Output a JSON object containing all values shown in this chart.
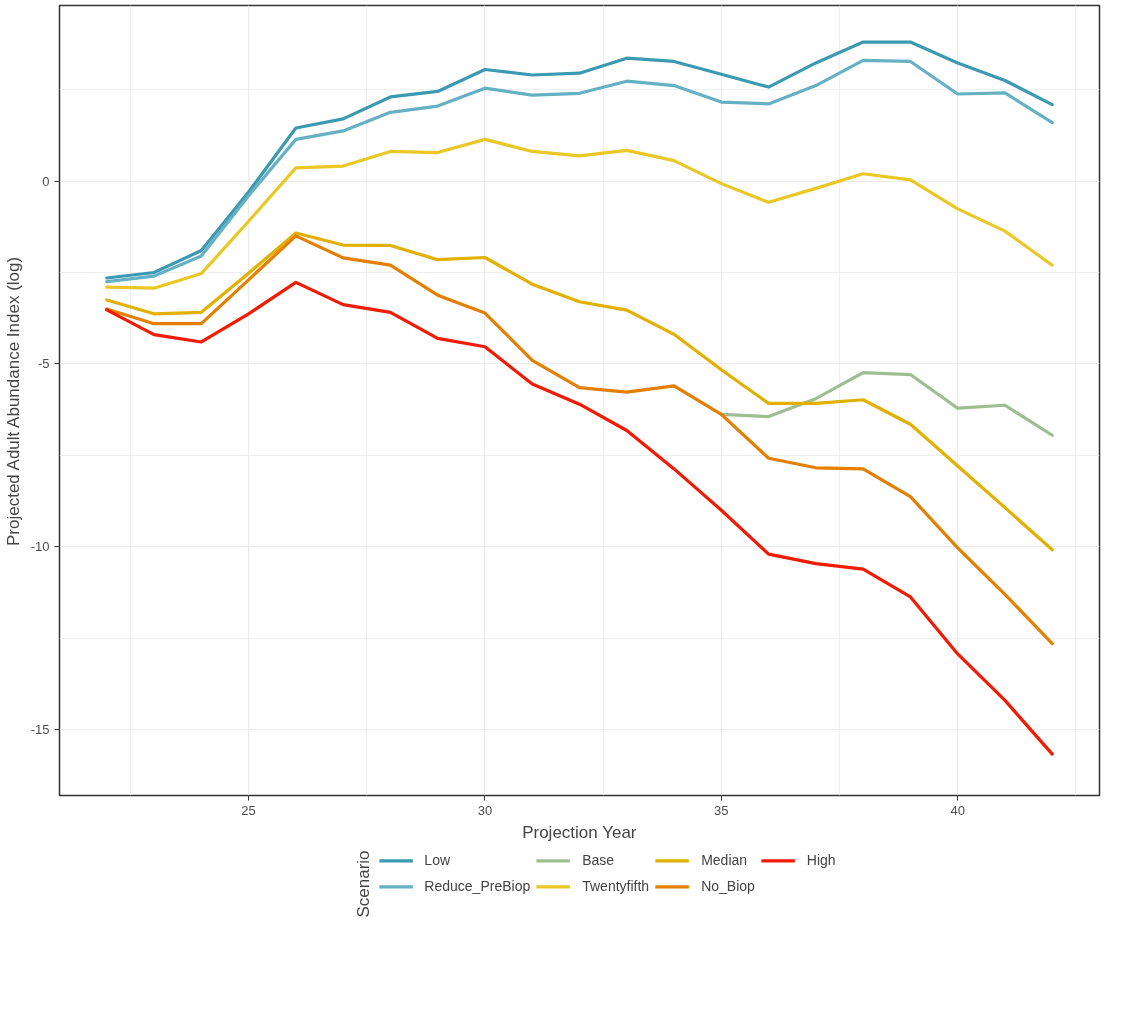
{
  "chart_data": {
    "type": "line",
    "xlabel": "Projection Year",
    "ylabel": "Projected Adult Abundance Index (log)",
    "legend_title": "Scenario",
    "x": [
      22,
      23,
      24,
      25,
      26,
      27,
      28,
      29,
      30,
      31,
      32,
      33,
      34,
      35,
      36,
      37,
      38,
      39,
      40,
      41,
      42
    ],
    "series": [
      {
        "name": "Low",
        "color": "#3b9ab2",
        "values": [
          -2.65,
          -2.5,
          -1.9,
          -0.3,
          1.45,
          1.7,
          2.3,
          2.45,
          3.05,
          2.9,
          2.95,
          3.36,
          3.27,
          2.92,
          2.57,
          3.23,
          3.8,
          3.8,
          3.23,
          2.75,
          2.09
        ]
      },
      {
        "name": "Reduce_PreBiop",
        "color": "#65b0c2",
        "values": [
          -2.75,
          -2.6,
          -2.05,
          -0.4,
          1.14,
          1.37,
          1.88,
          2.05,
          2.54,
          2.35,
          2.4,
          2.73,
          2.61,
          2.16,
          2.11,
          2.61,
          3.3,
          3.27,
          2.38,
          2.41,
          1.6
        ]
      },
      {
        "name": "Base",
        "color": "#9ebe91",
        "values": [
          null,
          null,
          null,
          null,
          null,
          null,
          null,
          null,
          null,
          null,
          null,
          null,
          null,
          -6.38,
          -6.44,
          -5.95,
          -5.24,
          -5.29,
          -6.21,
          -6.13,
          -6.95
        ]
      },
      {
        "name": "Twentyfifth",
        "color": "#e9c825",
        "values": [
          -2.9,
          -2.93,
          -2.53,
          -1.1,
          0.36,
          0.41,
          0.81,
          0.78,
          1.14,
          0.81,
          0.69,
          0.84,
          0.56,
          -0.07,
          -0.58,
          -0.2,
          0.2,
          0.03,
          -0.76,
          -1.37,
          -2.3
        ]
      },
      {
        "name": "Median",
        "color": "#e1b000",
        "values": [
          -3.25,
          -3.63,
          -3.59,
          -2.52,
          -1.42,
          -1.75,
          -1.76,
          -2.15,
          -2.09,
          -2.82,
          -3.3,
          -3.53,
          -4.19,
          -5.16,
          -6.08,
          -6.08,
          -5.98,
          -6.65,
          -7.79,
          -8.93,
          -10.08
        ]
      },
      {
        "name": "No_Biop",
        "color": "#e47f00",
        "values": [
          -3.5,
          -3.9,
          -3.9,
          -2.7,
          -1.5,
          -2.1,
          -2.3,
          -3.12,
          -3.61,
          -4.9,
          -5.65,
          -5.77,
          -5.6,
          -6.38,
          -7.58,
          -7.84,
          -7.87,
          -8.63,
          -10.03,
          -11.3,
          -12.65
        ]
      },
      {
        "name": "High",
        "color": "#f21a00",
        "values": [
          -3.52,
          -4.2,
          -4.4,
          -3.63,
          -2.77,
          -3.38,
          -3.59,
          -4.3,
          -4.53,
          -5.55,
          -6.1,
          -6.82,
          -7.87,
          -9.0,
          -10.2,
          -10.46,
          -10.61,
          -11.37,
          -12.93,
          -14.2,
          -15.67
        ]
      }
    ],
    "xlim": [
      21,
      43
    ],
    "ylim": [
      -16.8,
      4.8
    ],
    "xticks": [
      25,
      30,
      35,
      40
    ],
    "yticks": [
      -15,
      -10,
      -5,
      0
    ],
    "grid": true,
    "legend": "bottom",
    "line_style": "solid",
    "marker": "none"
  }
}
